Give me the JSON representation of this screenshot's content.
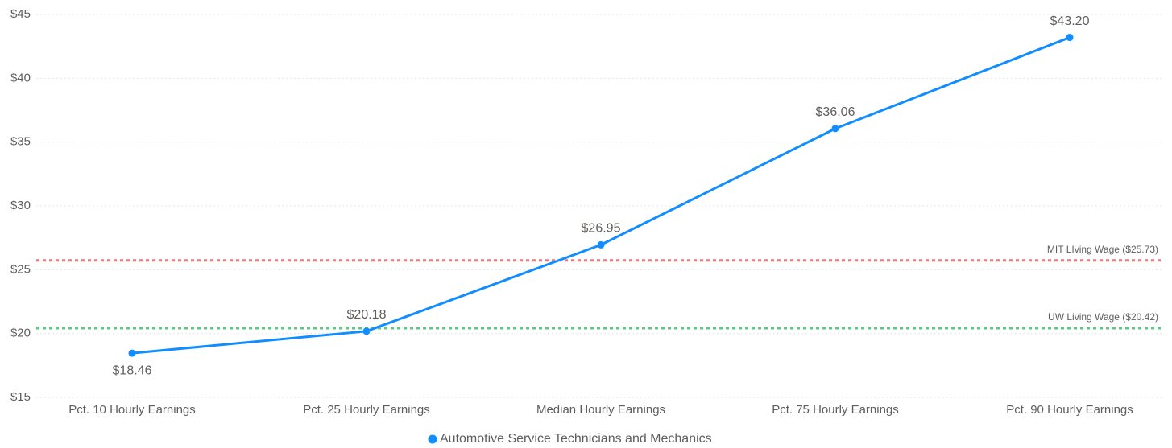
{
  "chart_data": {
    "type": "line",
    "categories": [
      "Pct. 10 Hourly Earnings",
      "Pct. 25 Hourly Earnings",
      "Median Hourly Earnings",
      "Pct. 75 Hourly Earnings",
      "Pct. 90 Hourly Earnings"
    ],
    "series": [
      {
        "name": "Automotive Service Technicians and Mechanics",
        "color": "#118dff",
        "values": [
          18.46,
          20.18,
          26.95,
          36.06,
          43.2
        ],
        "value_labels": [
          "$18.46",
          "$20.18",
          "$26.95",
          "$36.06",
          "$43.20"
        ]
      }
    ],
    "ylim": [
      15,
      45
    ],
    "yticks": [
      {
        "value": 15,
        "label": "$15"
      },
      {
        "value": 20,
        "label": "$20"
      },
      {
        "value": 25,
        "label": "$25"
      },
      {
        "value": 30,
        "label": "$30"
      },
      {
        "value": 35,
        "label": "$35"
      },
      {
        "value": 40,
        "label": "$40"
      },
      {
        "value": 45,
        "label": "$45"
      }
    ],
    "grid": true,
    "legend": "bottom",
    "reference_lines": [
      {
        "label": "MIT LIving Wage ($25.73)",
        "value": 25.73,
        "color": "#e8777c"
      },
      {
        "label": "UW Living Wage ($20.42)",
        "value": 20.42,
        "color": "#5cc97f"
      }
    ]
  }
}
